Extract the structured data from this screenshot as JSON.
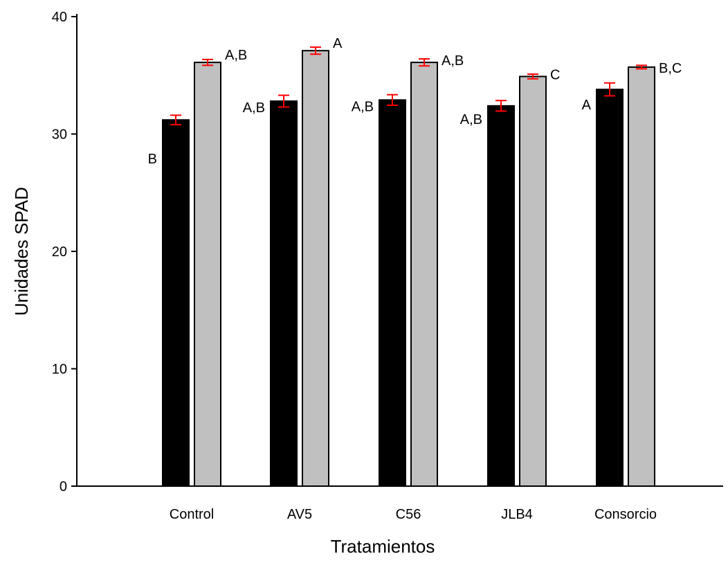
{
  "colors": {
    "series_1": "#000000",
    "series_2": "#c0c0c0",
    "error_bar": "#ff0000",
    "axis": "#000000"
  },
  "chart_data": {
    "type": "bar",
    "title": "",
    "xlabel": "Tratamientos",
    "ylabel": "Unidades SPAD",
    "ylim": [
      0,
      40
    ],
    "yticks": [
      0,
      10,
      20,
      30,
      40
    ],
    "grid": false,
    "categories": [
      "Control",
      "AV5",
      "C56",
      "JLB4",
      "Consorcio"
    ],
    "series": [
      {
        "values": [
          31.2,
          32.8,
          32.9,
          32.4,
          33.8
        ],
        "errors": [
          0.4,
          0.5,
          0.45,
          0.45,
          0.55
        ],
        "labels": [
          "B",
          "A,B",
          "A,B",
          "A,B",
          "A"
        ]
      },
      {
        "values": [
          36.1,
          37.1,
          36.1,
          34.9,
          35.7
        ],
        "errors": [
          0.25,
          0.3,
          0.3,
          0.2,
          0.15
        ],
        "labels": [
          "A,B",
          "A",
          "A,B",
          "C",
          "B,C"
        ]
      }
    ]
  }
}
